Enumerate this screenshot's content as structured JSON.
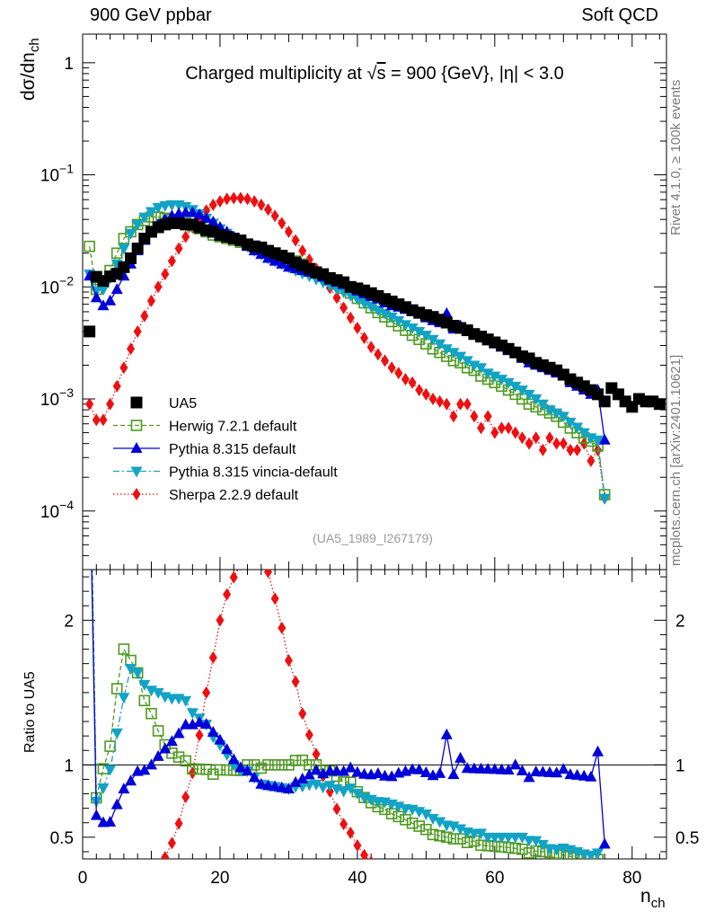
{
  "header": {
    "left": "900 GeV ppbar",
    "right": "Soft QCD"
  },
  "side": {
    "rivet": "Rivet 4.1.0, ≥ 100k events",
    "mcplots": "mcplots.cern.ch [arXiv:2401.10621]"
  },
  "chart_data": {
    "type": "scatter",
    "title": "Charged multiplicity at √s = 900 {GeV}, |η| < 3.0",
    "title_parts": {
      "pre": "Charged multiplicity at ",
      "sqrt": "√",
      "s": "s",
      "post": " = 900 {GeV}, |η| < 3.0"
    },
    "ylabel_top": {
      "main": "dσ/dn",
      "sub": "ch"
    },
    "ylabel_bottom": "Ratio to UA5",
    "xlabel": {
      "main": "n",
      "sub": "ch"
    },
    "watermark": "(UA5_1989_I267179)",
    "xlim": [
      0,
      85
    ],
    "ylim_top": [
      3e-05,
      1.8
    ],
    "ylim_bottom": [
      0.35,
      2.35
    ],
    "x_ticks": [
      0,
      20,
      40,
      60,
      80
    ],
    "x_tick_labels": [
      "0",
      "20",
      "40",
      "60",
      "80"
    ],
    "y_ticks_top": [
      {
        "value": 1,
        "base": "1",
        "exp": ""
      },
      {
        "value": 0.1,
        "base": "10",
        "exp": "−1"
      },
      {
        "value": 0.01,
        "base": "10",
        "exp": "−2"
      },
      {
        "value": 0.001,
        "base": "10",
        "exp": "−3"
      },
      {
        "value": 0.0001,
        "base": "10",
        "exp": "−4"
      }
    ],
    "y_ticks_bottom": [
      {
        "value": 2,
        "label": "2"
      },
      {
        "value": 1,
        "label": "1"
      },
      {
        "value": 0.5,
        "label": "0.5"
      }
    ],
    "legend_position": "lower-left",
    "series": [
      {
        "name": "UA5",
        "color": "#000000",
        "marker": "square-filled",
        "line": "none",
        "x": [
          1,
          2,
          3,
          4,
          5,
          6,
          7,
          8,
          9,
          10,
          11,
          12,
          13,
          14,
          15,
          16,
          17,
          18,
          19,
          20,
          21,
          22,
          23,
          24,
          25,
          26,
          27,
          28,
          29,
          30,
          31,
          32,
          33,
          34,
          35,
          36,
          37,
          38,
          39,
          40,
          41,
          42,
          43,
          44,
          45,
          46,
          47,
          48,
          49,
          50,
          51,
          52,
          53,
          54,
          55,
          56,
          57,
          58,
          59,
          60,
          61,
          62,
          63,
          64,
          65,
          66,
          67,
          68,
          69,
          70,
          71,
          72,
          73,
          74,
          75,
          76,
          77,
          78,
          79,
          80,
          81,
          82,
          83,
          84
        ],
        "y": [
          0.004,
          0.0123,
          0.0113,
          0.0124,
          0.0131,
          0.015,
          0.018,
          0.022,
          0.027,
          0.031,
          0.034,
          0.036,
          0.037,
          0.037,
          0.036,
          0.036,
          0.034,
          0.032,
          0.031,
          0.029,
          0.028,
          0.027,
          0.026,
          0.024,
          0.023,
          0.0225,
          0.021,
          0.02,
          0.019,
          0.018,
          0.0165,
          0.0155,
          0.0145,
          0.0135,
          0.013,
          0.012,
          0.0115,
          0.011,
          0.01,
          0.0097,
          0.0093,
          0.0088,
          0.0083,
          0.0078,
          0.0074,
          0.007,
          0.0066,
          0.0062,
          0.0059,
          0.0056,
          0.0054,
          0.0051,
          0.0048,
          0.0045,
          0.0043,
          0.0041,
          0.0038,
          0.0036,
          0.0034,
          0.0032,
          0.003,
          0.0028,
          0.0026,
          0.0024,
          0.0023,
          0.0021,
          0.002,
          0.0019,
          0.0018,
          0.00165,
          0.0015,
          0.0014,
          0.0013,
          0.0012,
          0.0011,
          0.00095,
          0.00125,
          0.0011,
          0.00095,
          0.00085,
          0.001,
          0.00095,
          0.00095,
          0.0009
        ]
      },
      {
        "name": "Herwig 7.2.1 default",
        "color": "#4d9a1e",
        "marker": "square-open",
        "line": "dashed",
        "x": [
          1,
          2,
          3,
          4,
          5,
          6,
          7,
          8,
          9,
          10,
          11,
          12,
          13,
          14,
          15,
          16,
          17,
          18,
          19,
          20,
          21,
          22,
          23,
          24,
          25,
          26,
          27,
          28,
          29,
          30,
          31,
          32,
          33,
          34,
          35,
          36,
          37,
          38,
          39,
          40,
          41,
          42,
          43,
          44,
          45,
          46,
          47,
          48,
          49,
          50,
          51,
          52,
          53,
          54,
          55,
          56,
          57,
          58,
          59,
          60,
          61,
          62,
          63,
          64,
          65,
          66,
          67,
          68,
          69,
          70,
          71,
          72,
          73,
          74,
          75,
          76
        ],
        "y": [
          0.023,
          0.0095,
          0.011,
          0.014,
          0.02,
          0.027,
          0.031,
          0.036,
          0.039,
          0.042,
          0.042,
          0.041,
          0.04,
          0.039,
          0.037,
          0.035,
          0.033,
          0.031,
          0.029,
          0.028,
          0.027,
          0.026,
          0.025,
          0.024,
          0.023,
          0.022,
          0.021,
          0.02,
          0.019,
          0.018,
          0.017,
          0.016,
          0.0145,
          0.0135,
          0.0125,
          0.0115,
          0.0106,
          0.0097,
          0.0088,
          0.0079,
          0.0072,
          0.0065,
          0.0059,
          0.0054,
          0.0049,
          0.0045,
          0.0041,
          0.0037,
          0.0034,
          0.0031,
          0.0028,
          0.0026,
          0.0024,
          0.0022,
          0.0021,
          0.0019,
          0.0018,
          0.0016,
          0.0015,
          0.0014,
          0.0013,
          0.0012,
          0.0011,
          0.001,
          0.0009,
          0.00085,
          0.0008,
          0.00075,
          0.0007,
          0.00062,
          0.00055,
          0.0005,
          0.00045,
          0.00042,
          0.00038,
          0.00014
        ]
      },
      {
        "name": "Pythia 8.315 default",
        "color": "#0000d9",
        "marker": "triangle-up",
        "line": "solid",
        "x": [
          1,
          2,
          3,
          4,
          5,
          6,
          7,
          8,
          9,
          10,
          11,
          12,
          13,
          14,
          15,
          16,
          17,
          18,
          19,
          20,
          21,
          22,
          23,
          24,
          25,
          26,
          27,
          28,
          29,
          30,
          31,
          32,
          33,
          34,
          35,
          36,
          37,
          38,
          39,
          40,
          41,
          42,
          43,
          44,
          45,
          46,
          47,
          48,
          49,
          50,
          51,
          52,
          53,
          54,
          55,
          56,
          57,
          58,
          59,
          60,
          61,
          62,
          63,
          64,
          65,
          66,
          67,
          68,
          69,
          70,
          71,
          72,
          73,
          74,
          75,
          76
        ],
        "y": [
          0.0125,
          0.008,
          0.0068,
          0.0075,
          0.0095,
          0.0125,
          0.016,
          0.021,
          0.026,
          0.031,
          0.036,
          0.04,
          0.043,
          0.045,
          0.046,
          0.046,
          0.044,
          0.041,
          0.038,
          0.034,
          0.031,
          0.028,
          0.0255,
          0.023,
          0.021,
          0.0195,
          0.018,
          0.017,
          0.016,
          0.015,
          0.0145,
          0.014,
          0.0135,
          0.013,
          0.0122,
          0.0115,
          0.011,
          0.0105,
          0.0098,
          0.0092,
          0.0087,
          0.0082,
          0.0078,
          0.0072,
          0.0068,
          0.0066,
          0.0063,
          0.006,
          0.0057,
          0.0053,
          0.005,
          0.0048,
          0.0058,
          0.0042,
          0.0045,
          0.004,
          0.0037,
          0.0035,
          0.0033,
          0.0031,
          0.0029,
          0.0027,
          0.0026,
          0.0023,
          0.0021,
          0.002,
          0.0019,
          0.0018,
          0.0017,
          0.0016,
          0.0014,
          0.0013,
          0.0012,
          0.0011,
          0.0012,
          0.00043
        ]
      },
      {
        "name": "Pythia 8.315 vincia-default",
        "color": "#12a3c6",
        "marker": "triangle-down",
        "line": "dashdot",
        "x": [
          1,
          2,
          3,
          4,
          5,
          6,
          7,
          8,
          9,
          10,
          11,
          12,
          13,
          14,
          15,
          16,
          17,
          18,
          19,
          20,
          21,
          22,
          23,
          24,
          25,
          26,
          27,
          28,
          29,
          30,
          31,
          32,
          33,
          34,
          35,
          36,
          37,
          38,
          39,
          40,
          41,
          42,
          43,
          44,
          45,
          46,
          47,
          48,
          49,
          50,
          51,
          52,
          53,
          54,
          55,
          56,
          57,
          58,
          59,
          60,
          61,
          62,
          63,
          64,
          65,
          66,
          67,
          68,
          69,
          70,
          71,
          72,
          73,
          74,
          75,
          76
        ],
        "y": [
          0.013,
          0.0092,
          0.0095,
          0.012,
          0.016,
          0.022,
          0.03,
          0.036,
          0.042,
          0.047,
          0.051,
          0.053,
          0.054,
          0.054,
          0.052,
          0.049,
          0.045,
          0.041,
          0.037,
          0.033,
          0.03,
          0.027,
          0.025,
          0.023,
          0.021,
          0.0195,
          0.018,
          0.017,
          0.016,
          0.015,
          0.014,
          0.0132,
          0.0125,
          0.0117,
          0.011,
          0.0103,
          0.0096,
          0.009,
          0.0084,
          0.0078,
          0.0072,
          0.0067,
          0.0062,
          0.0058,
          0.0054,
          0.005,
          0.0046,
          0.0043,
          0.004,
          0.0037,
          0.0034,
          0.0031,
          0.0028,
          0.0026,
          0.0024,
          0.0022,
          0.002,
          0.0019,
          0.0017,
          0.0016,
          0.0015,
          0.0014,
          0.0013,
          0.0012,
          0.0011,
          0.001,
          0.0009,
          0.0008,
          0.00075,
          0.0007,
          0.00062,
          0.00056,
          0.0005,
          0.00045,
          0.00043,
          0.00013
        ]
      },
      {
        "name": "Sherpa 2.2.9 default",
        "color": "#ee1010",
        "marker": "diamond",
        "line": "dotted",
        "x": [
          1,
          2,
          3,
          4,
          5,
          6,
          7,
          8,
          9,
          10,
          11,
          12,
          13,
          14,
          15,
          16,
          17,
          18,
          19,
          20,
          21,
          22,
          23,
          24,
          25,
          26,
          27,
          28,
          29,
          30,
          31,
          32,
          33,
          34,
          35,
          36,
          37,
          38,
          39,
          40,
          41,
          42,
          43,
          44,
          45,
          46,
          47,
          48,
          49,
          50,
          51,
          52,
          53,
          54,
          55,
          56,
          57,
          58,
          59,
          60,
          61,
          62,
          63,
          64,
          65,
          66,
          67,
          68,
          69,
          70,
          71,
          72,
          73,
          74,
          75,
          76
        ],
        "y": [
          0.0009,
          0.00065,
          0.00065,
          0.0009,
          0.0013,
          0.0019,
          0.0028,
          0.004,
          0.0055,
          0.0075,
          0.01,
          0.013,
          0.017,
          0.022,
          0.028,
          0.034,
          0.041,
          0.048,
          0.054,
          0.058,
          0.061,
          0.062,
          0.062,
          0.061,
          0.058,
          0.054,
          0.049,
          0.043,
          0.037,
          0.031,
          0.026,
          0.021,
          0.0175,
          0.0145,
          0.012,
          0.0098,
          0.008,
          0.0065,
          0.0053,
          0.0043,
          0.0035,
          0.0029,
          0.0025,
          0.0022,
          0.0019,
          0.0017,
          0.0015,
          0.0014,
          0.0012,
          0.0011,
          0.001,
          0.00095,
          0.0009,
          0.0007,
          0.0009,
          0.0009,
          0.0007,
          0.00055,
          0.0007,
          0.0005,
          0.00055,
          0.00055,
          0.0005,
          0.00045,
          0.0004,
          0.00045,
          0.00035,
          0.00045,
          0.0004,
          0.0004,
          0.00035,
          0.00035,
          0.0004,
          0.00028,
          0.00035,
          0.00013
        ]
      }
    ]
  }
}
